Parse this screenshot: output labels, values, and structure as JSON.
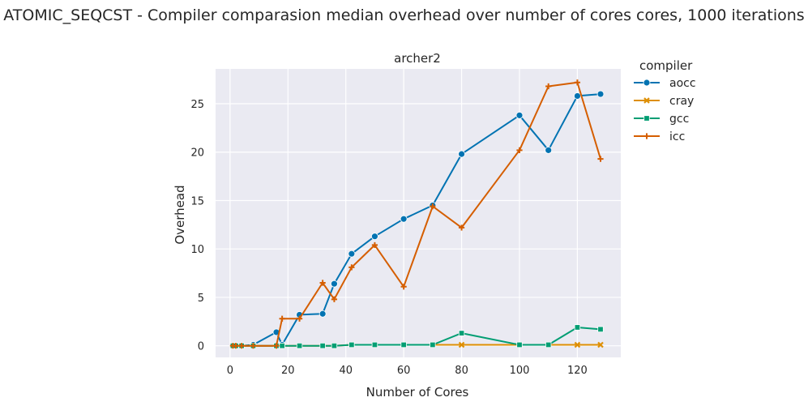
{
  "figure": {
    "suptitle": "ATOMIC_SEQCST - Compiler comparasion median overhead over number of cores cores, 1000 iterations"
  },
  "colors": {
    "background": "#eaeaf2",
    "grid": "#ffffff",
    "aocc": "#0173b2",
    "cray": "#de8f05",
    "gcc": "#029e73",
    "icc": "#d55e00"
  },
  "chart_data": {
    "type": "line",
    "title": "archer2",
    "xlabel": "Number of Cores",
    "ylabel": "Overhead",
    "xlim": [
      -5,
      135
    ],
    "ylim": [
      -1.2,
      28.6
    ],
    "xticks": [
      0,
      20,
      40,
      60,
      80,
      100,
      120
    ],
    "yticks": [
      0,
      5,
      10,
      15,
      20,
      25
    ],
    "grid": true,
    "legend": {
      "title": "compiler",
      "placement": "outside-right"
    },
    "series": [
      {
        "name": "aocc",
        "marker": "circle",
        "x": [
          1,
          2,
          4,
          8,
          16,
          18,
          24,
          32,
          36,
          42,
          50,
          60,
          70,
          80,
          100,
          110,
          120,
          128
        ],
        "y": [
          0.0,
          0.0,
          0.0,
          0.1,
          1.4,
          0.1,
          3.2,
          3.3,
          6.4,
          9.5,
          11.3,
          13.1,
          14.5,
          19.8,
          23.8,
          20.2,
          25.8,
          26.0
        ]
      },
      {
        "name": "cray",
        "marker": "x",
        "x": [
          1,
          2,
          4,
          8,
          16,
          18,
          24,
          32,
          36,
          42,
          50,
          60,
          70,
          80,
          100,
          110,
          120,
          128
        ],
        "y": [
          0.0,
          0.0,
          0.0,
          0.0,
          0.0,
          0.0,
          0.0,
          0.0,
          0.0,
          0.1,
          0.1,
          0.1,
          0.1,
          0.1,
          0.1,
          0.1,
          0.1,
          0.1
        ]
      },
      {
        "name": "gcc",
        "marker": "square",
        "x": [
          1,
          2,
          4,
          8,
          16,
          18,
          24,
          32,
          36,
          42,
          50,
          60,
          70,
          80,
          100,
          110,
          120,
          128
        ],
        "y": [
          0.0,
          0.0,
          0.0,
          0.0,
          0.0,
          0.0,
          0.0,
          0.0,
          0.0,
          0.1,
          0.1,
          0.1,
          0.1,
          1.3,
          0.1,
          0.1,
          1.9,
          1.7
        ]
      },
      {
        "name": "icc",
        "marker": "plus",
        "x": [
          1,
          2,
          4,
          8,
          16,
          18,
          24,
          32,
          36,
          42,
          50,
          60,
          70,
          80,
          100,
          110,
          120,
          128
        ],
        "y": [
          0.0,
          0.0,
          0.0,
          0.0,
          0.0,
          2.8,
          2.8,
          6.5,
          4.8,
          8.1,
          10.4,
          6.1,
          14.4,
          12.2,
          20.2,
          26.8,
          27.2,
          19.3
        ]
      }
    ]
  }
}
